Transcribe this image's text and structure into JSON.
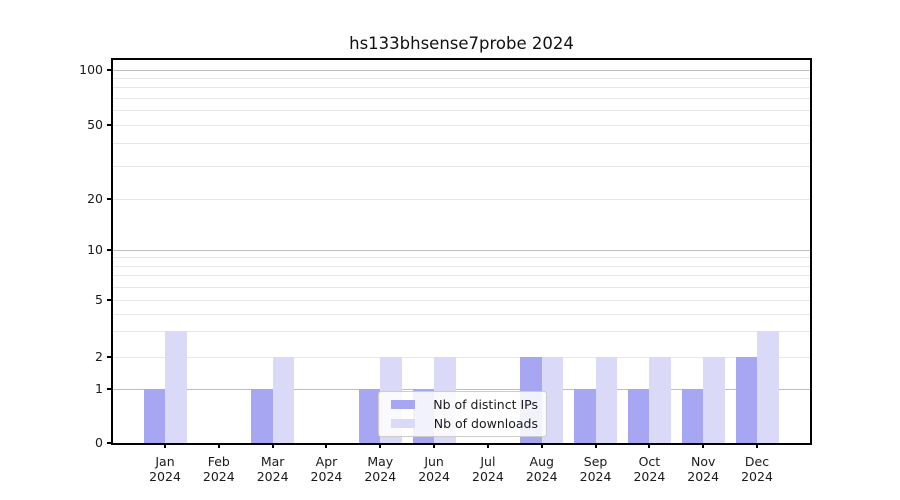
{
  "chart_data": {
    "type": "bar",
    "title": "hs133bhsense7probe 2024",
    "categories": [
      "Jan",
      "Feb",
      "Mar",
      "Apr",
      "May",
      "Jun",
      "Jul",
      "Aug",
      "Sep",
      "Oct",
      "Nov",
      "Dec"
    ],
    "x_sublabel": "2024",
    "series": [
      {
        "name": "Nb of distinct IPs",
        "color": "#a6a6f2",
        "values": [
          1,
          0,
          1,
          0,
          1,
          1,
          0,
          2,
          1,
          1,
          1,
          2
        ]
      },
      {
        "name": "Nb of downloads",
        "color": "#dadaf8",
        "values": [
          3,
          0,
          2,
          0,
          2,
          2,
          0,
          2,
          2,
          2,
          2,
          3
        ]
      }
    ],
    "yscale": "log",
    "ylim": [
      0,
      120
    ],
    "yticks_labeled": [
      0,
      1,
      2,
      5,
      10,
      20,
      50,
      100
    ],
    "yticks_unlabeled": [
      3,
      4,
      6,
      7,
      8,
      9,
      30,
      40,
      60,
      70,
      80,
      90
    ],
    "grid": true,
    "legend_position": "lower center",
    "colors": {
      "grid_major": "#bdbdbd",
      "grid_minor": "#e7e7e7",
      "axis": "#000000",
      "text": "#1a1a1a",
      "legend_border": "#cccccc"
    }
  }
}
